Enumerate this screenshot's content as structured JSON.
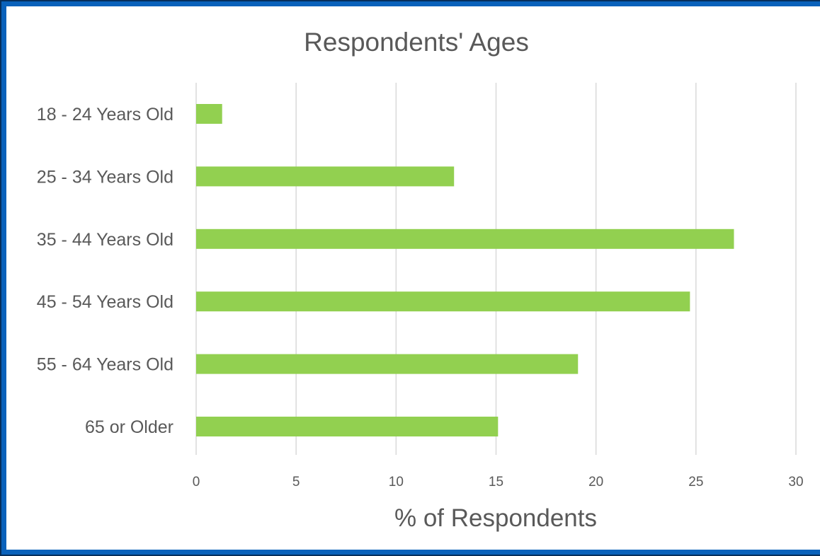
{
  "chart_data": {
    "type": "bar",
    "orientation": "horizontal",
    "title": "Respondents' Ages",
    "xlabel": "% of Respondents",
    "ylabel": "",
    "categories": [
      "18 - 24 Years Old",
      "25 - 34 Years Old",
      "35 - 44 Years Old",
      "45 - 54 Years Old",
      "55 - 64 Years Old",
      "65 or Older"
    ],
    "values": [
      1.3,
      12.9,
      26.9,
      24.7,
      19.1,
      15.1
    ],
    "xlim": [
      0,
      30
    ],
    "xticks": [
      0,
      5,
      10,
      15,
      20,
      25,
      30
    ],
    "grid": "vertical",
    "legend": "none",
    "bar_color": "#92d050"
  },
  "colors": {
    "frame": "#0a62bb",
    "text": "#595959",
    "grid": "#d9d9d9"
  }
}
